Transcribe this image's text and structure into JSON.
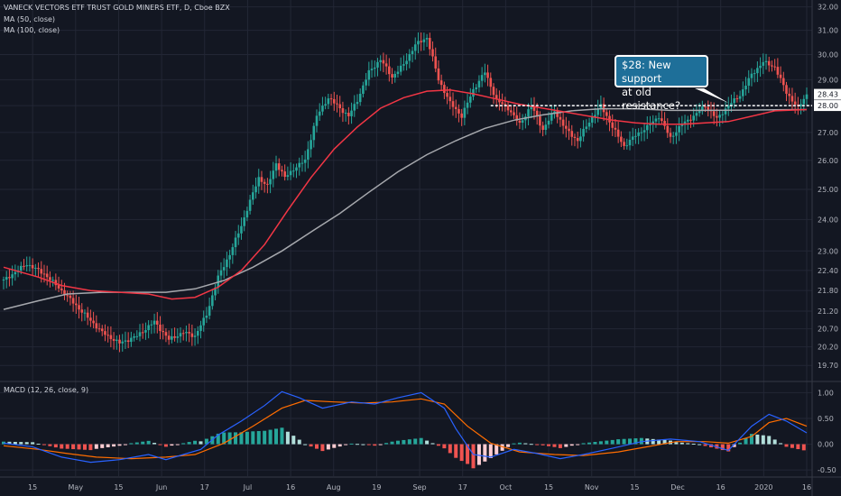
{
  "header": {
    "title": "VANECK VECTORS ETF TRUST GOLD MINERS ETF, D, Cboe BZX",
    "ma50": "MA (50, close)",
    "ma100": "MA (100, close)",
    "macd": "MACD (12, 26, close, 9)"
  },
  "annotation": {
    "line1": "$28: New support",
    "line2": "at old resistance?"
  },
  "colors": {
    "background": "#131722",
    "grid": "#232735",
    "text": "#b2b5be",
    "up": "#26a69a",
    "down": "#ef5350",
    "ma50": "#f23645",
    "ma100": "#a6a8ad",
    "macd": "#2962ff",
    "signal": "#ff6d00",
    "callout": "#1e6f99"
  },
  "chart_data": [
    {
      "type": "candlestick",
      "x_tick_labels": [
        "15",
        "May",
        "15",
        "Jun",
        "17",
        "Jul",
        "16",
        "Aug",
        "19",
        "Sep",
        "17",
        "Oct",
        "15",
        "Nov",
        "15",
        "Dec",
        "16",
        "2020",
        "16"
      ],
      "y_ticks": [
        19.7,
        20.2,
        20.7,
        21.2,
        21.8,
        22.4,
        23.0,
        24.0,
        25.0,
        26.0,
        27.0,
        28.0,
        29.0,
        30.0,
        31.0,
        32.0
      ],
      "y_tick_labels": [
        "19.70",
        "20.20",
        "20.70",
        "21.20",
        "21.80",
        "22.40",
        "23.00",
        "24.00",
        "25.00",
        "26.00",
        "27.00",
        "28.00",
        "29.00",
        "30.00",
        "31.00",
        "32.00"
      ],
      "ylim": [
        19.3,
        32.3
      ],
      "scale": "log",
      "last_price": 28.43,
      "support_level": 28.0,
      "support_label": "28.00",
      "last_price_label": "28.43",
      "close_path": [
        [
          0,
          22.1
        ],
        [
          8,
          22.6
        ],
        [
          14,
          22.3
        ],
        [
          20,
          21.8
        ],
        [
          28,
          21.1
        ],
        [
          34,
          20.6
        ],
        [
          40,
          20.3
        ],
        [
          46,
          20.5
        ],
        [
          52,
          20.9
        ],
        [
          57,
          20.4
        ],
        [
          62,
          20.6
        ],
        [
          66,
          20.5
        ],
        [
          70,
          21.1
        ],
        [
          74,
          22.2
        ],
        [
          78,
          22.9
        ],
        [
          82,
          23.8
        ],
        [
          85,
          24.6
        ],
        [
          88,
          25.4
        ],
        [
          91,
          25.1
        ],
        [
          94,
          25.9
        ],
        [
          97,
          25.4
        ],
        [
          100,
          25.7
        ],
        [
          104,
          26.0
        ],
        [
          108,
          27.6
        ],
        [
          112,
          28.3
        ],
        [
          116,
          27.9
        ],
        [
          119,
          27.6
        ],
        [
          122,
          28.2
        ],
        [
          126,
          29.3
        ],
        [
          130,
          29.8
        ],
        [
          134,
          29.1
        ],
        [
          138,
          29.6
        ],
        [
          142,
          30.4
        ],
        [
          146,
          30.7
        ],
        [
          150,
          29.0
        ],
        [
          154,
          28.1
        ],
        [
          158,
          27.6
        ],
        [
          162,
          28.6
        ],
        [
          166,
          29.3
        ],
        [
          170,
          28.2
        ],
        [
          174,
          27.9
        ],
        [
          178,
          27.3
        ],
        [
          182,
          28.0
        ],
        [
          186,
          27.1
        ],
        [
          190,
          27.8
        ],
        [
          194,
          27.1
        ],
        [
          198,
          26.7
        ],
        [
          202,
          27.4
        ],
        [
          206,
          28.0
        ],
        [
          210,
          27.2
        ],
        [
          214,
          26.5
        ],
        [
          218,
          26.9
        ],
        [
          222,
          27.2
        ],
        [
          226,
          27.6
        ],
        [
          230,
          26.8
        ],
        [
          234,
          27.3
        ],
        [
          238,
          27.6
        ],
        [
          242,
          28.0
        ],
        [
          246,
          27.5
        ],
        [
          250,
          28.0
        ],
        [
          254,
          28.4
        ],
        [
          258,
          29.2
        ],
        [
          262,
          29.7
        ],
        [
          266,
          29.5
        ],
        [
          270,
          28.5
        ],
        [
          274,
          27.9
        ],
        [
          277,
          28.43
        ]
      ],
      "ma50": [
        [
          0,
          22.5
        ],
        [
          12,
          22.2
        ],
        [
          20,
          21.95
        ],
        [
          30,
          21.8
        ],
        [
          40,
          21.75
        ],
        [
          50,
          21.7
        ],
        [
          58,
          21.55
        ],
        [
          66,
          21.6
        ],
        [
          74,
          21.9
        ],
        [
          82,
          22.4
        ],
        [
          90,
          23.2
        ],
        [
          98,
          24.3
        ],
        [
          106,
          25.4
        ],
        [
          114,
          26.4
        ],
        [
          122,
          27.2
        ],
        [
          130,
          27.9
        ],
        [
          138,
          28.3
        ],
        [
          146,
          28.55
        ],
        [
          154,
          28.6
        ],
        [
          162,
          28.45
        ],
        [
          170,
          28.25
        ],
        [
          178,
          28.05
        ],
        [
          186,
          27.9
        ],
        [
          194,
          27.75
        ],
        [
          202,
          27.6
        ],
        [
          210,
          27.45
        ],
        [
          218,
          27.35
        ],
        [
          226,
          27.3
        ],
        [
          234,
          27.3
        ],
        [
          242,
          27.35
        ],
        [
          250,
          27.4
        ],
        [
          258,
          27.6
        ],
        [
          266,
          27.8
        ],
        [
          277,
          27.85
        ]
      ],
      "ma100": [
        [
          0,
          21.25
        ],
        [
          12,
          21.5
        ],
        [
          22,
          21.7
        ],
        [
          34,
          21.75
        ],
        [
          46,
          21.75
        ],
        [
          56,
          21.75
        ],
        [
          66,
          21.85
        ],
        [
          76,
          22.1
        ],
        [
          86,
          22.5
        ],
        [
          96,
          23.0
        ],
        [
          106,
          23.6
        ],
        [
          116,
          24.2
        ],
        [
          126,
          24.9
        ],
        [
          136,
          25.6
        ],
        [
          146,
          26.2
        ],
        [
          156,
          26.7
        ],
        [
          166,
          27.15
        ],
        [
          176,
          27.45
        ],
        [
          186,
          27.65
        ],
        [
          196,
          27.8
        ],
        [
          206,
          27.88
        ],
        [
          218,
          27.88
        ],
        [
          230,
          27.82
        ],
        [
          242,
          27.82
        ],
        [
          254,
          27.83
        ],
        [
          266,
          27.84
        ],
        [
          277,
          27.85
        ]
      ]
    },
    {
      "type": "macd",
      "y_ticks": [
        -0.5,
        0.0,
        0.5,
        1.0
      ],
      "y_tick_labels": [
        "-0.50",
        "0.00",
        "0.50",
        "1.00"
      ],
      "ylim": [
        -0.62,
        1.2
      ],
      "macd": [
        [
          0,
          0.02
        ],
        [
          10,
          -0.05
        ],
        [
          20,
          -0.25
        ],
        [
          30,
          -0.35
        ],
        [
          40,
          -0.3
        ],
        [
          50,
          -0.2
        ],
        [
          56,
          -0.3
        ],
        [
          62,
          -0.2
        ],
        [
          68,
          -0.1
        ],
        [
          74,
          0.18
        ],
        [
          82,
          0.45
        ],
        [
          90,
          0.75
        ],
        [
          96,
          1.02
        ],
        [
          102,
          0.9
        ],
        [
          110,
          0.7
        ],
        [
          120,
          0.82
        ],
        [
          128,
          0.78
        ],
        [
          136,
          0.9
        ],
        [
          144,
          1.0
        ],
        [
          152,
          0.7
        ],
        [
          156,
          0.3
        ],
        [
          162,
          -0.2
        ],
        [
          168,
          -0.25
        ],
        [
          176,
          -0.1
        ],
        [
          184,
          -0.18
        ],
        [
          192,
          -0.28
        ],
        [
          200,
          -0.2
        ],
        [
          210,
          -0.08
        ],
        [
          220,
          0.05
        ],
        [
          230,
          0.1
        ],
        [
          240,
          0.05
        ],
        [
          250,
          -0.12
        ],
        [
          258,
          0.35
        ],
        [
          264,
          0.58
        ],
        [
          270,
          0.45
        ],
        [
          277,
          0.22
        ]
      ],
      "signal": [
        [
          0,
          -0.03
        ],
        [
          12,
          -0.1
        ],
        [
          22,
          -0.18
        ],
        [
          32,
          -0.25
        ],
        [
          44,
          -0.28
        ],
        [
          56,
          -0.25
        ],
        [
          66,
          -0.2
        ],
        [
          76,
          0.02
        ],
        [
          86,
          0.35
        ],
        [
          96,
          0.7
        ],
        [
          104,
          0.85
        ],
        [
          114,
          0.82
        ],
        [
          124,
          0.8
        ],
        [
          134,
          0.82
        ],
        [
          144,
          0.88
        ],
        [
          152,
          0.78
        ],
        [
          160,
          0.35
        ],
        [
          168,
          0.02
        ],
        [
          178,
          -0.15
        ],
        [
          190,
          -0.2
        ],
        [
          200,
          -0.22
        ],
        [
          212,
          -0.15
        ],
        [
          222,
          -0.05
        ],
        [
          232,
          0.05
        ],
        [
          242,
          0.05
        ],
        [
          250,
          0.02
        ],
        [
          258,
          0.15
        ],
        [
          264,
          0.42
        ],
        [
          270,
          0.5
        ],
        [
          277,
          0.35
        ]
      ],
      "histogram_note": "macd minus signal"
    }
  ]
}
